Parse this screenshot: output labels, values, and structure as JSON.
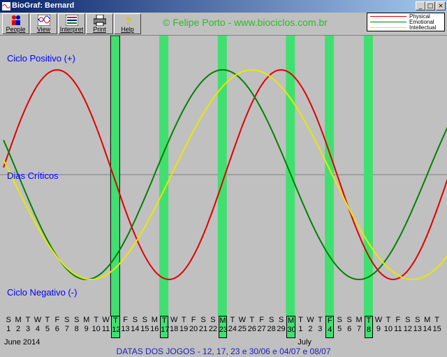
{
  "window": {
    "title": "BioGraf: Bernard"
  },
  "toolbar": [
    {
      "label": "People",
      "icon": "people-icon"
    },
    {
      "label": "View",
      "icon": "view-icon"
    },
    {
      "label": "Interpret",
      "icon": "interpret-icon"
    },
    {
      "label": "Print",
      "icon": "print-icon"
    },
    {
      "label": "Help",
      "icon": "help-icon"
    }
  ],
  "watermark": "© Felipe Porto - www.biociclos.com.br",
  "legend": [
    {
      "name": "Physical",
      "color": "#e00000"
    },
    {
      "name": "Emotional",
      "color": "#008000"
    },
    {
      "name": "Intellectual",
      "color": "#e8e800"
    }
  ],
  "labels": {
    "positive": "Ciclo Positivo (+)",
    "critical": "Dias Críticos",
    "negative": "Ciclo Negativo (-)"
  },
  "days": [
    {
      "w": "S",
      "d": "1"
    },
    {
      "w": "M",
      "d": "2"
    },
    {
      "w": "T",
      "d": "3"
    },
    {
      "w": "W",
      "d": "4"
    },
    {
      "w": "T",
      "d": "5"
    },
    {
      "w": "F",
      "d": "6"
    },
    {
      "w": "S",
      "d": "7"
    },
    {
      "w": "S",
      "d": "8"
    },
    {
      "w": "M",
      "d": "9"
    },
    {
      "w": "T",
      "d": "10"
    },
    {
      "w": "W",
      "d": "11"
    },
    {
      "w": "T",
      "d": "12"
    },
    {
      "w": "F",
      "d": "13"
    },
    {
      "w": "S",
      "d": "14"
    },
    {
      "w": "S",
      "d": "15"
    },
    {
      "w": "M",
      "d": "16"
    },
    {
      "w": "T",
      "d": "17"
    },
    {
      "w": "W",
      "d": "18"
    },
    {
      "w": "T",
      "d": "19"
    },
    {
      "w": "F",
      "d": "20"
    },
    {
      "w": "S",
      "d": "21"
    },
    {
      "w": "S",
      "d": "22"
    },
    {
      "w": "M",
      "d": "23"
    },
    {
      "w": "T",
      "d": "24"
    },
    {
      "w": "W",
      "d": "25"
    },
    {
      "w": "T",
      "d": "26"
    },
    {
      "w": "F",
      "d": "27"
    },
    {
      "w": "S",
      "d": "28"
    },
    {
      "w": "S",
      "d": "29"
    },
    {
      "w": "M",
      "d": "30"
    },
    {
      "w": "T",
      "d": "1"
    },
    {
      "w": "W",
      "d": "2"
    },
    {
      "w": "T",
      "d": "3"
    },
    {
      "w": "F",
      "d": "4"
    },
    {
      "w": "S",
      "d": "5"
    },
    {
      "w": "S",
      "d": "6"
    },
    {
      "w": "M",
      "d": "7"
    },
    {
      "w": "T",
      "d": "8"
    },
    {
      "w": "W",
      "d": "9"
    },
    {
      "w": "T",
      "d": "10"
    },
    {
      "w": "F",
      "d": "11"
    },
    {
      "w": "S",
      "d": "12"
    },
    {
      "w": "S",
      "d": "13"
    },
    {
      "w": "M",
      "d": "14"
    },
    {
      "w": "T",
      "d": "15"
    }
  ],
  "highlighted_day_indices": [
    11,
    16,
    22,
    29,
    33,
    37
  ],
  "highlight_color": "#40e070",
  "months": [
    {
      "label": "June 2014",
      "start_index": 0
    },
    {
      "label": "July",
      "start_index": 30
    }
  ],
  "footer": "DATAS DOS JOGOS - 12, 17, 23 e 30/06 e 04/07 e 08/07",
  "chart_data": {
    "type": "line",
    "x": [
      "2014-06-01",
      "2014-06-02",
      "2014-06-03",
      "2014-06-04",
      "2014-06-05",
      "2014-06-06",
      "2014-06-07",
      "2014-06-08",
      "2014-06-09",
      "2014-06-10",
      "2014-06-11",
      "2014-06-12",
      "2014-06-13",
      "2014-06-14",
      "2014-06-15",
      "2014-06-16",
      "2014-06-17",
      "2014-06-18",
      "2014-06-19",
      "2014-06-20",
      "2014-06-21",
      "2014-06-22",
      "2014-06-23",
      "2014-06-24",
      "2014-06-25",
      "2014-06-26",
      "2014-06-27",
      "2014-06-28",
      "2014-06-29",
      "2014-06-30",
      "2014-07-01",
      "2014-07-02",
      "2014-07-03",
      "2014-07-04",
      "2014-07-05",
      "2014-07-06",
      "2014-07-07",
      "2014-07-08",
      "2014-07-09",
      "2014-07-10",
      "2014-07-11",
      "2014-07-12",
      "2014-07-13",
      "2014-07-14",
      "2014-07-15"
    ],
    "ylim": [
      -1,
      1
    ],
    "series": [
      {
        "name": "Physical",
        "color": "#e00000",
        "period_days": 23,
        "peak_day": "2014-06-06"
      },
      {
        "name": "Emotional",
        "color": "#008000",
        "period_days": 28,
        "peak_day": "2014-06-23"
      },
      {
        "name": "Intellectual",
        "color": "#e8e800",
        "period_days": 33,
        "peak_day": "2014-06-26"
      }
    ]
  }
}
